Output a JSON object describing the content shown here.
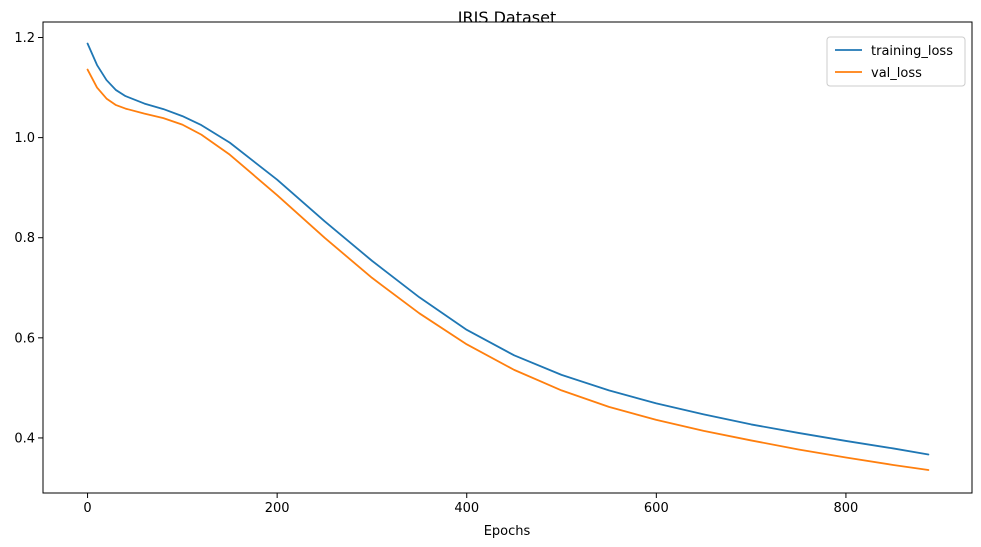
{
  "chart_data": {
    "type": "line",
    "title": "IRIS Dataset",
    "xlabel": "Epochs",
    "ylabel": "",
    "xlim": [
      -47,
      933
    ],
    "ylim": [
      0.29,
      1.231
    ],
    "xticks": [
      0,
      200,
      400,
      600,
      800
    ],
    "xtick_labels": [
      "0",
      "200",
      "400",
      "600",
      "800"
    ],
    "yticks": [
      0.4,
      0.6,
      0.8,
      1.0,
      1.2
    ],
    "ytick_labels": [
      "0.4",
      "0.6",
      "0.8",
      "1.0",
      "1.2"
    ],
    "grid": false,
    "legend_position": "top-right",
    "series": [
      {
        "name": "training_loss",
        "color": "#1f77b4",
        "x": [
          0,
          10,
          20,
          30,
          40,
          60,
          80,
          100,
          120,
          150,
          200,
          250,
          300,
          350,
          400,
          450,
          500,
          550,
          600,
          650,
          700,
          750,
          800,
          850,
          887
        ],
        "y": [
          1.188,
          1.145,
          1.115,
          1.095,
          1.083,
          1.068,
          1.057,
          1.043,
          1.025,
          0.99,
          0.916,
          0.833,
          0.754,
          0.681,
          0.616,
          0.565,
          0.526,
          0.495,
          0.469,
          0.447,
          0.427,
          0.41,
          0.394,
          0.379,
          0.367
        ]
      },
      {
        "name": "val_loss",
        "color": "#ff7f0e",
        "x": [
          0,
          10,
          20,
          30,
          40,
          60,
          80,
          100,
          120,
          150,
          200,
          250,
          300,
          350,
          400,
          450,
          500,
          550,
          600,
          650,
          700,
          750,
          800,
          850,
          887
        ],
        "y": [
          1.136,
          1.1,
          1.078,
          1.065,
          1.058,
          1.048,
          1.039,
          1.026,
          1.006,
          0.966,
          0.885,
          0.8,
          0.72,
          0.649,
          0.587,
          0.536,
          0.495,
          0.462,
          0.436,
          0.414,
          0.395,
          0.377,
          0.361,
          0.346,
          0.336
        ]
      }
    ]
  }
}
